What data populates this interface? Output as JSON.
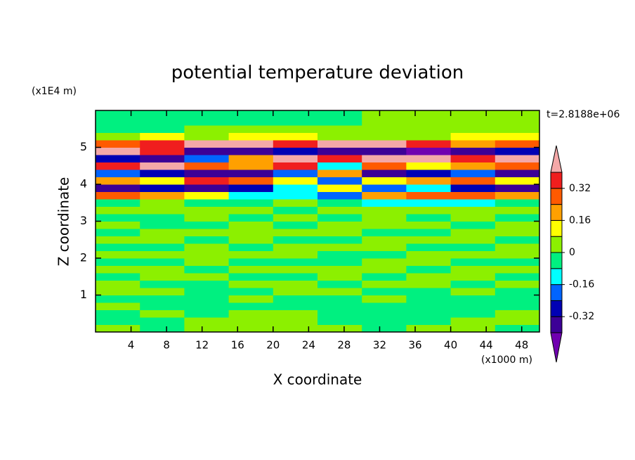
{
  "chart_data": {
    "type": "contour",
    "title": "potential temperature deviation",
    "y_unit_label": "(x1E4 m)",
    "x_unit_label": "(x1000 m)",
    "time_label": "t=2.8188e+06",
    "xlabel": "X coordinate",
    "ylabel": "Z coordinate",
    "xlim": [
      0,
      50
    ],
    "ylim": [
      0,
      6
    ],
    "xticks": [
      4,
      8,
      12,
      16,
      20,
      24,
      28,
      32,
      36,
      40,
      44,
      48
    ],
    "yticks": [
      1,
      2,
      3,
      4,
      5
    ],
    "x": [
      2.5,
      7.5,
      12.5,
      17.5,
      22.5,
      27.5,
      32.5,
      37.5,
      42.5,
      47.5
    ],
    "z": [
      0.1,
      0.3,
      0.5,
      0.7,
      0.9,
      1.1,
      1.3,
      1.5,
      1.7,
      1.9,
      2.1,
      2.3,
      2.5,
      2.7,
      2.9,
      3.1,
      3.3,
      3.5,
      3.7,
      3.9,
      4.1,
      4.3,
      4.5,
      4.7,
      4.9,
      5.1,
      5.3,
      5.5,
      5.7,
      5.9
    ],
    "values": [
      [
        0.03,
        -0.02,
        0.03,
        0.03,
        0.03,
        0.03,
        -0.02,
        0.03,
        0.03,
        -0.02
      ],
      [
        -0.02,
        -0.02,
        0.03,
        0.03,
        0.03,
        -0.02,
        -0.02,
        -0.02,
        0.03,
        0.03
      ],
      [
        -0.02,
        0.03,
        -0.02,
        0.03,
        0.03,
        -0.02,
        -0.02,
        -0.02,
        -0.02,
        0.03
      ],
      [
        0.03,
        -0.02,
        -0.02,
        -0.02,
        -0.02,
        -0.02,
        -0.02,
        -0.02,
        -0.02,
        -0.02
      ],
      [
        -0.02,
        -0.02,
        -0.02,
        0.03,
        -0.02,
        -0.02,
        0.03,
        -0.02,
        -0.02,
        -0.02
      ],
      [
        0.03,
        0.03,
        -0.02,
        -0.02,
        0.03,
        0.03,
        -0.02,
        -0.02,
        0.03,
        -0.02
      ],
      [
        0.03,
        -0.02,
        -0.02,
        0.03,
        0.03,
        -0.02,
        0.03,
        0.03,
        -0.02,
        0.03
      ],
      [
        -0.02,
        0.03,
        0.03,
        -0.02,
        -0.02,
        0.03,
        -0.02,
        0.03,
        0.03,
        -0.02
      ],
      [
        0.03,
        0.03,
        -0.02,
        0.03,
        0.03,
        0.03,
        0.03,
        -0.02,
        0.03,
        0.03
      ],
      [
        -0.02,
        -0.02,
        0.03,
        -0.02,
        -0.02,
        -0.02,
        0.03,
        0.03,
        -0.02,
        -0.02
      ],
      [
        0.03,
        0.03,
        0.03,
        0.03,
        0.03,
        -0.02,
        -0.02,
        0.03,
        0.03,
        0.03
      ],
      [
        -0.02,
        -0.02,
        0.03,
        -0.02,
        0.03,
        0.03,
        0.03,
        -0.02,
        -0.02,
        0.03
      ],
      [
        0.03,
        0.03,
        -0.02,
        0.03,
        -0.02,
        -0.02,
        0.03,
        0.03,
        0.03,
        -0.02
      ],
      [
        -0.02,
        0.03,
        0.03,
        0.03,
        0.03,
        0.03,
        -0.02,
        -0.02,
        0.03,
        0.03
      ],
      [
        0.03,
        -0.02,
        -0.02,
        0.03,
        -0.02,
        0.03,
        0.03,
        0.03,
        -0.02,
        0.03
      ],
      [
        -0.02,
        -0.02,
        0.03,
        -0.02,
        0.03,
        -0.02,
        0.03,
        -0.02,
        0.03,
        -0.02
      ],
      [
        0.03,
        0.03,
        0.03,
        0.03,
        -0.02,
        0.03,
        0.03,
        0.03,
        0.03,
        0.03
      ],
      [
        -0.02,
        0.03,
        -0.02,
        -0.02,
        0.03,
        -0.02,
        -0.12,
        -0.12,
        -0.12,
        -0.02
      ],
      [
        0.28,
        0.2,
        0.12,
        -0.12,
        -0.12,
        -0.2,
        0.2,
        0.3,
        0.28,
        0.2
      ],
      [
        -0.36,
        -0.28,
        -0.36,
        -0.28,
        -0.12,
        0.12,
        -0.2,
        -0.12,
        -0.28,
        -0.36
      ],
      [
        0.2,
        0.12,
        0.36,
        0.3,
        0.12,
        -0.2,
        0.12,
        0.2,
        0.28,
        0.12
      ],
      [
        -0.2,
        -0.28,
        -0.36,
        -0.36,
        -0.2,
        0.2,
        -0.36,
        -0.28,
        -0.2,
        -0.36
      ],
      [
        0.36,
        0.44,
        0.3,
        0.2,
        0.36,
        -0.12,
        0.28,
        0.12,
        0.2,
        0.3
      ],
      [
        -0.28,
        -0.36,
        -0.2,
        0.2,
        0.44,
        0.36,
        0.44,
        0.44,
        0.36,
        0.44
      ],
      [
        0.44,
        0.36,
        -0.36,
        -0.36,
        -0.28,
        -0.36,
        -0.36,
        -0.44,
        -0.36,
        -0.28
      ],
      [
        0.3,
        0.36,
        0.44,
        0.44,
        0.36,
        0.44,
        0.44,
        0.36,
        0.2,
        0.3
      ],
      [
        0.03,
        0.12,
        0.03,
        0.12,
        0.12,
        0.03,
        0.03,
        0.03,
        0.12,
        0.12
      ],
      [
        -0.02,
        -0.02,
        0.03,
        0.03,
        0.03,
        0.03,
        0.03,
        0.03,
        0.03,
        0.03
      ],
      [
        -0.02,
        -0.02,
        -0.02,
        -0.02,
        -0.02,
        -0.02,
        0.03,
        0.03,
        0.03,
        0.03
      ],
      [
        -0.02,
        -0.02,
        -0.02,
        -0.02,
        -0.02,
        -0.02,
        0.03,
        0.03,
        0.03,
        0.03
      ]
    ],
    "levels": [
      -0.4,
      -0.32,
      -0.24,
      -0.16,
      -0.08,
      0,
      0.08,
      0.16,
      0.24,
      0.32,
      0.4
    ],
    "colors": [
      "#7000b0",
      "#3c0096",
      "#0000b4",
      "#0064ff",
      "#00ffff",
      "#00f080",
      "#8cf000",
      "#ffff00",
      "#ffa000",
      "#ff5a00",
      "#f01e1e",
      "#f4a8a8"
    ],
    "colorbar_ticks": [
      0.32,
      0.16,
      0,
      -0.16,
      -0.32
    ]
  }
}
